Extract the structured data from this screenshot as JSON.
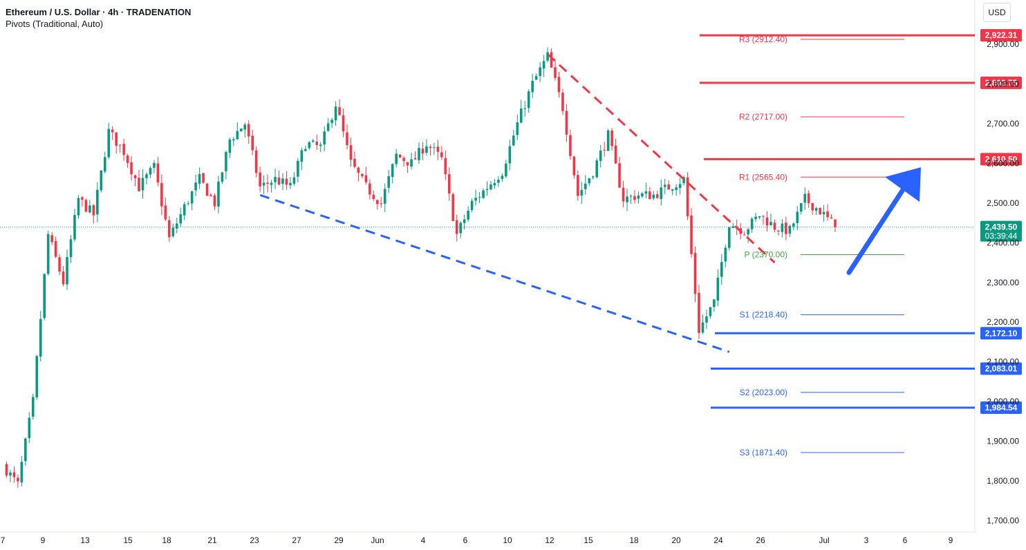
{
  "header": {
    "title": "Ethereum / U.S. Dollar · 4h · TRADENATION",
    "subtitle": "Pivots (Traditional, Auto)"
  },
  "currency_button": "USD",
  "price_tag": {
    "price": "2,439.50",
    "countdown": "03:39:44",
    "color": "#089981"
  },
  "colors": {
    "up": "#089981",
    "down": "#f23645",
    "resistance": "#f23645",
    "support": "#2962ff",
    "pivot": "#43a047"
  },
  "chart_data": {
    "type": "candlestick",
    "title": "Ethereum / U.S. Dollar · 4h · TRADENATION",
    "y_axis": {
      "ticks": [
        1700,
        1800,
        1900,
        2000,
        2100,
        2200,
        2300,
        2400,
        2500,
        2600,
        2700,
        2800,
        2900
      ],
      "tick_labels": [
        "1,700.00",
        "1,800.00",
        "1,900.00",
        "2,000.00",
        "2,100.00",
        "2,200.00",
        "2,300.00",
        "2,400.00",
        "2,500.00",
        "2,600.00",
        "2,700.00",
        "2,800.00",
        "2,900.00"
      ],
      "range": [
        1660,
        2950
      ]
    },
    "x_axis": {
      "tick_labels": [
        "7",
        "9",
        "13",
        "15",
        "18",
        "21",
        "23",
        "27",
        "29",
        "Jun",
        "4",
        "6",
        "10",
        "12",
        "15",
        "18",
        "20",
        "24",
        "26",
        "Jul",
        "3",
        "6",
        "9"
      ]
    },
    "anchor_points": [
      {
        "date": "May 7",
        "close": 1840
      },
      {
        "date": "May 8",
        "close": 1790
      },
      {
        "date": "May 9",
        "close": 2000
      },
      {
        "date": "May 10",
        "close": 2420
      },
      {
        "date": "May 11",
        "close": 2300
      },
      {
        "date": "May 12",
        "close": 2510
      },
      {
        "date": "May 13",
        "close": 2470
      },
      {
        "date": "May 14",
        "close": 2680
      },
      {
        "date": "May 15",
        "close": 2630
      },
      {
        "date": "May 16",
        "close": 2540
      },
      {
        "date": "May 17",
        "close": 2590
      },
      {
        "date": "May 18",
        "close": 2410
      },
      {
        "date": "May 19",
        "close": 2490
      },
      {
        "date": "May 20",
        "close": 2560
      },
      {
        "date": "May 21",
        "close": 2500
      },
      {
        "date": "May 22",
        "close": 2660
      },
      {
        "date": "May 23",
        "close": 2700
      },
      {
        "date": "May 24",
        "close": 2540
      },
      {
        "date": "May 25",
        "close": 2560
      },
      {
        "date": "May 26",
        "close": 2540
      },
      {
        "date": "May 27",
        "close": 2650
      },
      {
        "date": "May 28",
        "close": 2640
      },
      {
        "date": "May 29",
        "close": 2750
      },
      {
        "date": "May 30",
        "close": 2600
      },
      {
        "date": "May 31",
        "close": 2540
      },
      {
        "date": "Jun 1",
        "close": 2500
      },
      {
        "date": "Jun 2",
        "close": 2620
      },
      {
        "date": "Jun 3",
        "close": 2600
      },
      {
        "date": "Jun 4",
        "close": 2650
      },
      {
        "date": "Jun 5",
        "close": 2610
      },
      {
        "date": "Jun 6",
        "close": 2420
      },
      {
        "date": "Jun 7",
        "close": 2500
      },
      {
        "date": "Jun 8",
        "close": 2540
      },
      {
        "date": "Jun 9",
        "close": 2580
      },
      {
        "date": "Jun 10",
        "close": 2700
      },
      {
        "date": "Jun 11",
        "close": 2800
      },
      {
        "date": "Jun 12",
        "close": 2870
      },
      {
        "date": "Jun 13",
        "close": 2740
      },
      {
        "date": "Jun 14",
        "close": 2520
      },
      {
        "date": "Jun 15",
        "close": 2580
      },
      {
        "date": "Jun 16",
        "close": 2670
      },
      {
        "date": "Jun 17",
        "close": 2510
      },
      {
        "date": "Jun 18",
        "close": 2520
      },
      {
        "date": "Jun 19",
        "close": 2520
      },
      {
        "date": "Jun 20",
        "close": 2540
      },
      {
        "date": "Jun 21",
        "close": 2560
      },
      {
        "date": "Jun 22",
        "close": 2180
      },
      {
        "date": "Jun 23",
        "close": 2250
      },
      {
        "date": "Jun 24",
        "close": 2450
      },
      {
        "date": "Jun 25",
        "close": 2430
      },
      {
        "date": "Jun 26",
        "close": 2470
      },
      {
        "date": "Jun 27",
        "close": 2440
      },
      {
        "date": "Jun 28",
        "close": 2430
      },
      {
        "date": "Jun 29",
        "close": 2510
      },
      {
        "date": "Jun 30",
        "close": 2480
      },
      {
        "date": "Jul 1",
        "close": 2439.5
      }
    ],
    "pivots": [
      {
        "label": "R3 (2912.40)",
        "value": 2912.4,
        "kind": "resistance"
      },
      {
        "label": "R2 (2717.00)",
        "value": 2717.0,
        "kind": "resistance"
      },
      {
        "label": "R1 (2565.40)",
        "value": 2565.4,
        "kind": "resistance"
      },
      {
        "label": "P (2370.00)",
        "value": 2370.0,
        "kind": "pivot"
      },
      {
        "label": "S1 (2218.40)",
        "value": 2218.4,
        "kind": "support"
      },
      {
        "label": "S2 (2023.00)",
        "value": 2023.0,
        "kind": "support"
      },
      {
        "label": "S3 (1871.40)",
        "value": 1871.4,
        "kind": "support"
      }
    ],
    "levels": [
      {
        "label": "2,922.31",
        "value": 2922.31,
        "kind": "resistance"
      },
      {
        "label": "2,802.75",
        "value": 2802.75,
        "kind": "resistance"
      },
      {
        "label": "2,610.50",
        "value": 2610.5,
        "kind": "resistance"
      },
      {
        "label": "2,172.10",
        "value": 2172.1,
        "kind": "support"
      },
      {
        "label": "2,083.01",
        "value": 2083.01,
        "kind": "support"
      },
      {
        "label": "1,984.54",
        "value": 1984.54,
        "kind": "support"
      }
    ],
    "trendlines": [
      {
        "name": "descending-resistance",
        "style": "dashed",
        "kind": "resistance",
        "from": {
          "date": "Jun 12",
          "price": 2875
        },
        "to": {
          "date": "Jun 27",
          "price": 2350
        }
      },
      {
        "name": "descending-support",
        "style": "dashed",
        "kind": "support",
        "from": {
          "date": "May 24",
          "price": 2520
        },
        "to": {
          "date": "Jun 24",
          "price": 2125
        }
      }
    ],
    "projection_arrow": {
      "from_price": 2325,
      "to_price": 2590,
      "direction": "up",
      "color": "#2962ff"
    },
    "current_price": 2439.5
  }
}
